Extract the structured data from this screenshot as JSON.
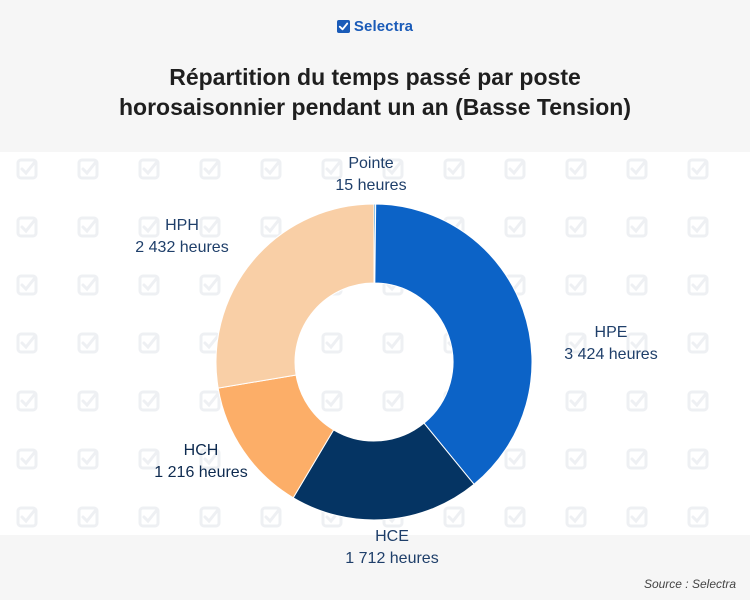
{
  "brand": {
    "name": "Selectra"
  },
  "title_lines": [
    "Répartition du temps passé par poste",
    "horosaisonnier pendant un an (Basse Tension)"
  ],
  "source": "Source : Selectra",
  "chart_data": {
    "type": "pie",
    "donut": true,
    "title": "Répartition du temps passé par poste horosaisonnier pendant un an (Basse Tension)",
    "slices": [
      {
        "label": "Pointe",
        "value": 15,
        "value_text": "15 heures",
        "color": "#2a8fd4"
      },
      {
        "label": "HPE",
        "value": 3424,
        "value_text": "3 424 heures",
        "color": "#0c63c7"
      },
      {
        "label": "HCE",
        "value": 1712,
        "value_text": "1 712 heures",
        "color": "#053463"
      },
      {
        "label": "HCH",
        "value": 1216,
        "value_text": "1 216 heures",
        "color": "#fcae68"
      },
      {
        "label": "HPH",
        "value": 2432,
        "value_text": "2 432 heures",
        "color": "#f9cfa6"
      }
    ]
  }
}
